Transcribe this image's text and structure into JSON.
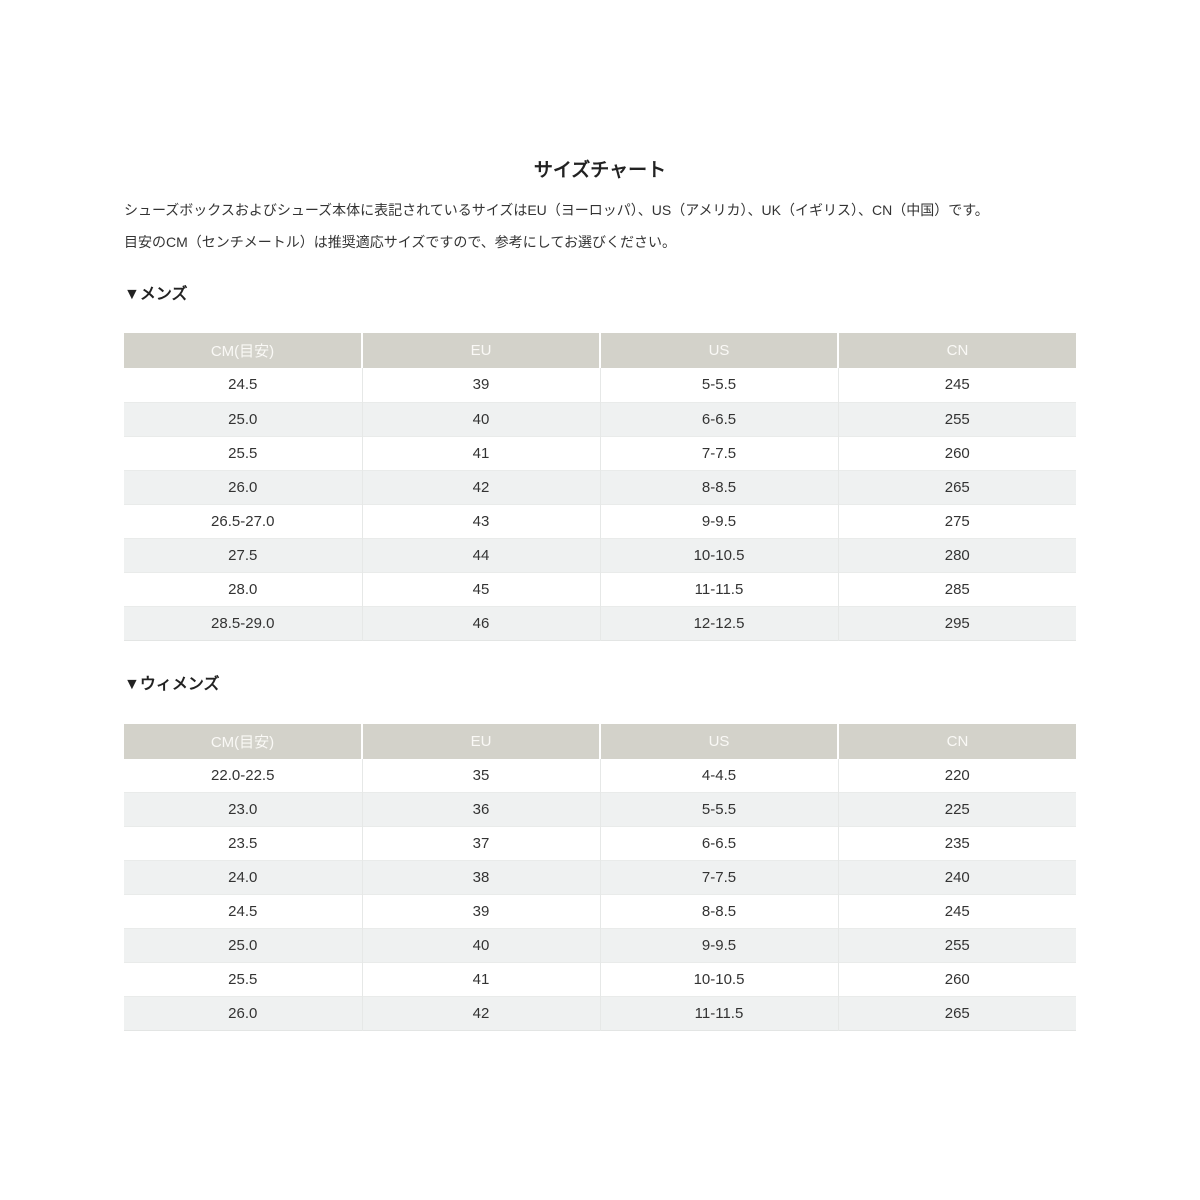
{
  "page": {
    "title": "サイズチャート",
    "intro_lines": [
      "シューズボックスおよびシューズ本体に表記されているサイズはEU（ヨーロッパ）、US（アメリカ）、UK（イギリス）、CN（中国）です。",
      "目安のCM（センチメートル）は推奨適応サイズですので、参考にしてお選びください。"
    ]
  },
  "colors": {
    "header_bg": "#d3d2ca",
    "header_text": "#faf9f6",
    "stripe_bg": "#eff1f1",
    "text": "#333333",
    "title_text": "#222222"
  },
  "tables": {
    "mens": {
      "heading": "▼メンズ",
      "columns": [
        "CM(目安)",
        "EU",
        "US",
        "CN"
      ],
      "rows": [
        [
          "24.5",
          "39",
          "5-5.5",
          "245"
        ],
        [
          "25.0",
          "40",
          "6-6.5",
          "255"
        ],
        [
          "25.5",
          "41",
          "7-7.5",
          "260"
        ],
        [
          "26.0",
          "42",
          "8-8.5",
          "265"
        ],
        [
          "26.5-27.0",
          "43",
          "9-9.5",
          "275"
        ],
        [
          "27.5",
          "44",
          "10-10.5",
          "280"
        ],
        [
          "28.0",
          "45",
          "11-11.5",
          "285"
        ],
        [
          "28.5-29.0",
          "46",
          "12-12.5",
          "295"
        ]
      ]
    },
    "womens": {
      "heading": "▼ウィメンズ",
      "columns": [
        "CM(目安)",
        "EU",
        "US",
        "CN"
      ],
      "rows": [
        [
          "22.0-22.5",
          "35",
          "4-4.5",
          "220"
        ],
        [
          "23.0",
          "36",
          "5-5.5",
          "225"
        ],
        [
          "23.5",
          "37",
          "6-6.5",
          "235"
        ],
        [
          "24.0",
          "38",
          "7-7.5",
          "240"
        ],
        [
          "24.5",
          "39",
          "8-8.5",
          "245"
        ],
        [
          "25.0",
          "40",
          "9-9.5",
          "255"
        ],
        [
          "25.5",
          "41",
          "10-10.5",
          "260"
        ],
        [
          "26.0",
          "42",
          "11-11.5",
          "265"
        ]
      ]
    }
  }
}
